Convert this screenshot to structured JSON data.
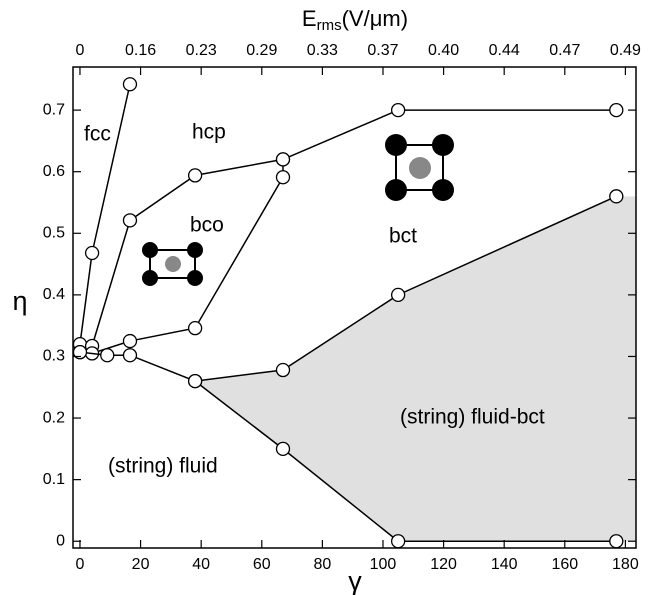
{
  "chart_data": {
    "type": "line",
    "xlabel": "γ",
    "ylabel": "η",
    "x2label": {
      "base": "E",
      "sub": "rms",
      "unit": "(V/μm)"
    },
    "xlim": [
      -2.3,
      183.5
    ],
    "ylim": [
      -0.011,
      0.77
    ],
    "xticks": [
      0,
      20,
      40,
      60,
      80,
      100,
      120,
      140,
      160,
      180
    ],
    "yticks": [
      0,
      0.1,
      0.2,
      0.3,
      0.4,
      0.5,
      0.6,
      0.7
    ],
    "x2ticks": [
      {
        "value": 0,
        "label": "0"
      },
      {
        "value": 20,
        "label": "0.16"
      },
      {
        "value": 40,
        "label": "0.23"
      },
      {
        "value": 60,
        "label": "0.29"
      },
      {
        "value": 80,
        "label": "0.33"
      },
      {
        "value": 100,
        "label": "0.37"
      },
      {
        "value": 120,
        "label": "0.40"
      },
      {
        "value": 140,
        "label": "0.44"
      },
      {
        "value": 160,
        "label": "0.47"
      },
      {
        "value": 180,
        "label": "0.49"
      }
    ],
    "annotations": [
      "fcc",
      "hcp",
      "bco",
      "bct",
      "(string) fluid-bct",
      "(string) fluid"
    ],
    "region_fill": "#e0e0e0",
    "series": [
      {
        "color": "#000000",
        "x": [
          0,
          4,
          16.5
        ],
        "values": [
          0.32,
          0.468,
          0.742
        ]
      },
      {
        "color": "#000000",
        "x": [
          4,
          16.5,
          38,
          67,
          105,
          177
        ],
        "values": [
          0.317,
          0.521,
          0.594,
          0.62,
          0.7,
          0.7
        ]
      },
      {
        "color": "#000000",
        "x": [
          0,
          4,
          16.5,
          38,
          67,
          67
        ],
        "values": [
          0.307,
          0.305,
          0.325,
          0.346,
          0.591,
          0.62
        ]
      },
      {
        "color": "#000000",
        "x": [
          0,
          9,
          16.5,
          38,
          67,
          105,
          177
        ],
        "values": [
          0.307,
          0.302,
          0.302,
          0.26,
          0.278,
          0.4,
          0.56
        ]
      },
      {
        "color": "#000000",
        "x": [
          38,
          67,
          105,
          177
        ],
        "values": [
          0.26,
          0.15,
          0,
          0
        ]
      }
    ]
  }
}
